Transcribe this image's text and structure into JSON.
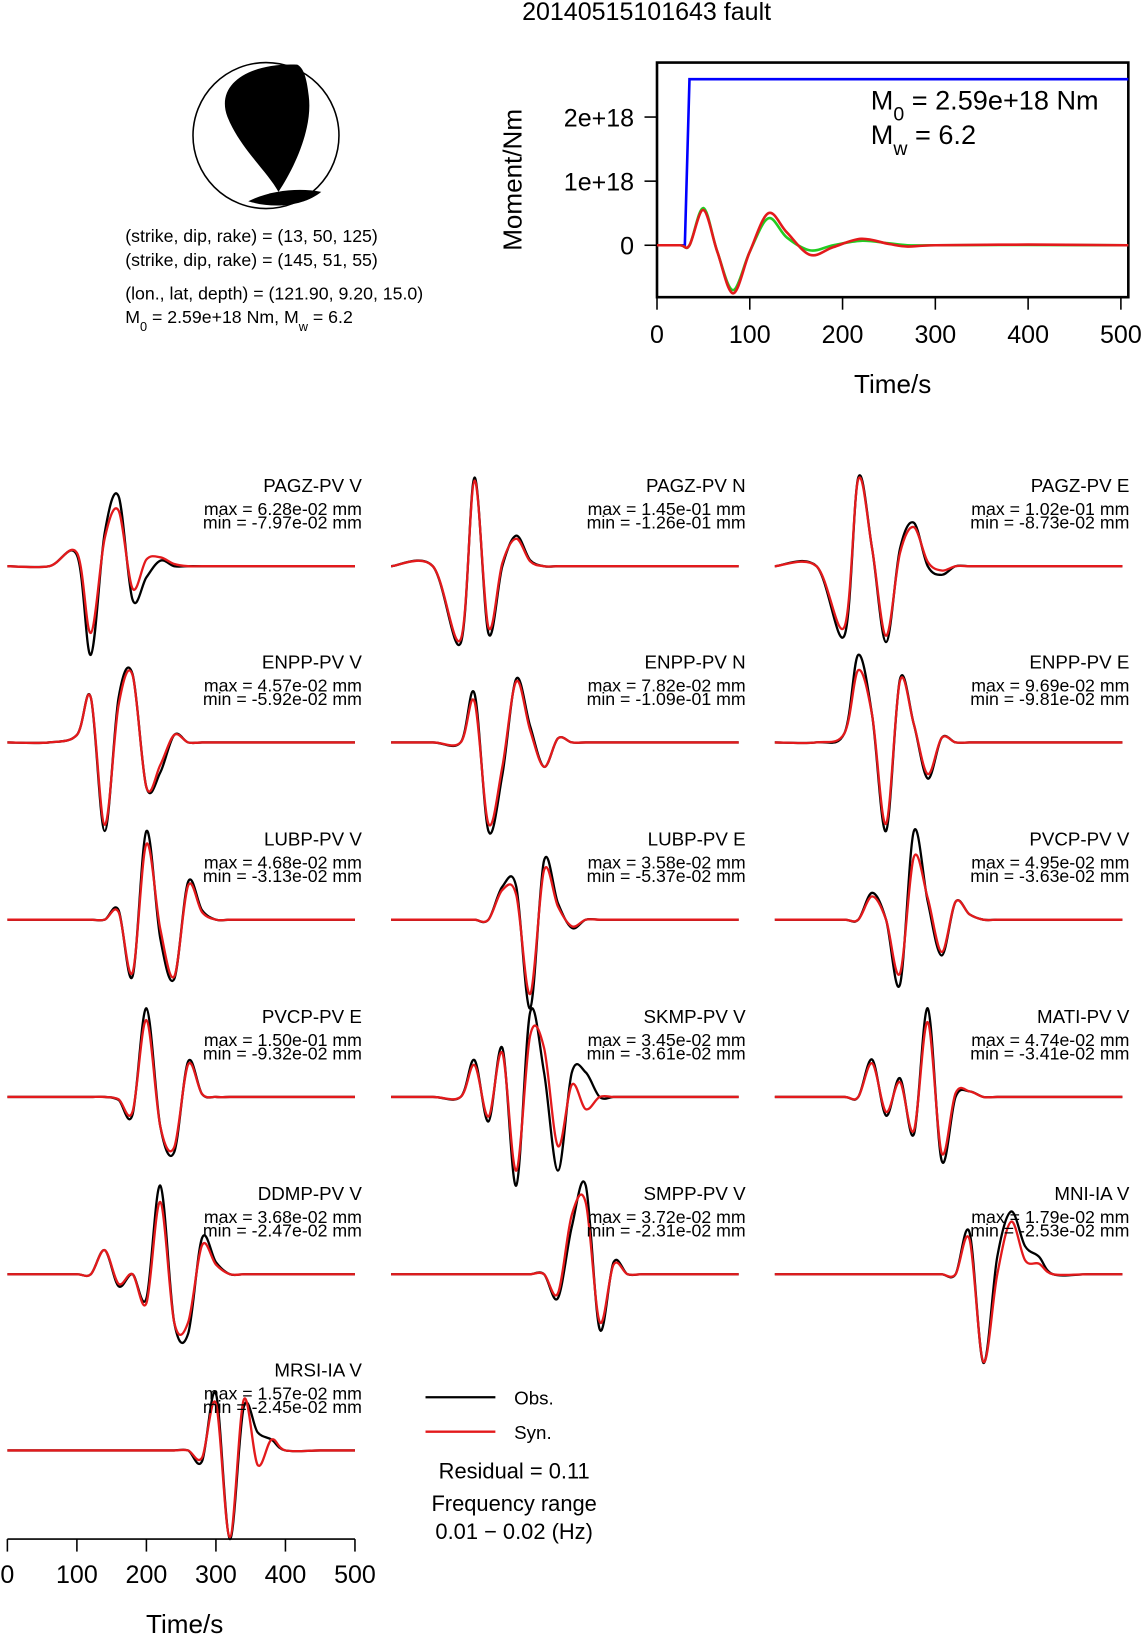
{
  "title": "20140515101643 fault",
  "mechanism": {
    "lines": [
      "(strike, dip, rake) = (13, 50, 125)",
      "(strike, dip, rake) = (145, 51, 55)",
      "(lon., lat, depth) = (121.90, 9.20, 15.0)"
    ],
    "moment_line": [
      "M",
      "0",
      " = 2.59e+18 Nm, M",
      "w",
      " = 6.2"
    ]
  },
  "chart_data": [
    {
      "type": "line",
      "xlabel": "Time/s",
      "ylabel": "Moment/Nm",
      "xlim": [
        0,
        508
      ],
      "xticks": [
        0,
        100,
        200,
        300,
        400,
        500
      ],
      "ylim": [
        -8.1e+17,
        2.85e+18
      ],
      "yticks": [
        0,
        {
          "value": 1e+18,
          "label": "1e+18"
        },
        {
          "value": 2e+18,
          "label": "2e+18"
        }
      ],
      "annotation": [
        [
          "M",
          "0",
          " = 2.59e+18 Nm"
        ],
        [
          "M",
          "w",
          " = 6.2"
        ]
      ],
      "series": [
        {
          "color": "#0000ff",
          "x": [
            0,
            30,
            35,
            508
          ],
          "values": [
            0,
            0,
            2.59e+18,
            2.59e+18
          ]
        },
        {
          "color": "#22cc22",
          "x": [
            0,
            25,
            35,
            50,
            65,
            82,
            100,
            120,
            140,
            165,
            190,
            220,
            250,
            270,
            300,
            400,
            508
          ],
          "values": [
            0,
            0,
            0,
            5.8e+17,
            -1e+17,
            -7e+17,
            -1e+17,
            4.2e+17,
            1.2e+17,
            -8e+16,
            0,
            7e+16,
            3e+16,
            0,
            0,
            5000000000000000.0,
            0
          ]
        },
        {
          "color": "#e31a1c",
          "x": [
            0,
            25,
            35,
            50,
            65,
            82,
            100,
            120,
            140,
            165,
            190,
            220,
            250,
            270,
            300,
            400,
            508
          ],
          "values": [
            0,
            0,
            0,
            5.5e+17,
            -1e+17,
            -7.5e+17,
            -1e+17,
            5e+17,
            2e+17,
            -1.5e+17,
            -3e+16,
            1e+17,
            2e+16,
            -2e+16,
            0,
            1e+16,
            0
          ]
        }
      ]
    },
    {
      "type": "waveform",
      "xlabel": "Time/s",
      "xlim": [
        0,
        510
      ],
      "xticks": [
        0,
        100,
        200,
        300,
        400,
        500
      ],
      "x": [
        0,
        60,
        100,
        120,
        140,
        160,
        180,
        200,
        220,
        240,
        260,
        280,
        300,
        320,
        340,
        360,
        380,
        400,
        450,
        500
      ],
      "legend": [
        {
          "name": "Obs.",
          "color": "#000000"
        },
        {
          "name": "Syn.",
          "color": "#e31a1c"
        }
      ],
      "notes": [
        "Residual = 0.11",
        "Frequency range",
        "0.01 − 0.02 (Hz)"
      ],
      "panels": [
        {
          "station": "PAGZ-PV V",
          "max": 0.0628,
          "max_label": "max = 6.28e-02 mm",
          "min": -0.0797,
          "min_label": "min = -7.97e-02 mm",
          "obs": [
            0,
            0,
            0.01,
            -0.0797,
            0.03,
            0.0628,
            -0.03,
            -0.01,
            0.005,
            0,
            0,
            0,
            0,
            0,
            0,
            0,
            0,
            0,
            0,
            0
          ],
          "syn": [
            0,
            0,
            0.012,
            -0.06,
            0.025,
            0.05,
            -0.02,
            0.006,
            0.008,
            0.002,
            0,
            0,
            0,
            0,
            0,
            0,
            0,
            0,
            0,
            0
          ]
        },
        {
          "station": "PAGZ-PV N",
          "max": 0.145,
          "max_label": "max = 1.45e-01 mm",
          "min": -0.126,
          "min_label": "min = -1.26e-01 mm",
          "obs": [
            0,
            0,
            -0.126,
            0.145,
            -0.11,
            0,
            0.05,
            0.01,
            0,
            0,
            0,
            0,
            0,
            0,
            0,
            0,
            0,
            0,
            0,
            0
          ],
          "syn": [
            0,
            0,
            -0.12,
            0.14,
            -0.1,
            0.005,
            0.045,
            0.008,
            0,
            0,
            0,
            0,
            0,
            0,
            0,
            0,
            0,
            0,
            0,
            0
          ]
        },
        {
          "station": "PAGZ-PV E",
          "max": 0.102,
          "max_label": "max = 1.02e-01 mm",
          "min": -0.0873,
          "min_label": "min = -8.73e-02 mm",
          "obs": [
            0,
            0,
            -0.08,
            0.102,
            0.02,
            -0.0873,
            0.02,
            0.05,
            0,
            -0.01,
            0,
            0,
            0,
            0,
            0,
            0,
            0,
            0,
            0,
            0
          ],
          "syn": [
            0,
            0,
            -0.07,
            0.1,
            0.02,
            -0.08,
            0.015,
            0.045,
            0.005,
            -0.005,
            0,
            0,
            0,
            0,
            0,
            0,
            0,
            0,
            0,
            0
          ]
        },
        {
          "station": "ENPP-PV V",
          "max": 0.0457,
          "max_label": "max = 4.57e-02 mm",
          "min": -0.0592,
          "min_label": "min = -5.92e-02 mm",
          "obs": [
            0,
            0,
            0.005,
            0.03,
            -0.0592,
            0.03,
            0.0457,
            -0.03,
            -0.02,
            0.005,
            0,
            0,
            0,
            0,
            0,
            0,
            0,
            0,
            0,
            0
          ],
          "syn": [
            0,
            0,
            0.005,
            0.03,
            -0.055,
            0.025,
            0.045,
            -0.03,
            -0.015,
            0.005,
            0,
            0,
            0,
            0,
            0,
            0,
            0,
            0,
            0,
            0
          ]
        },
        {
          "station": "ENPP-PV N",
          "max": 0.0782,
          "max_label": "max = 7.82e-02 mm",
          "min": -0.109,
          "min_label": "min = -1.09e-01 mm",
          "obs": [
            0,
            0,
            0,
            0.06,
            -0.109,
            -0.04,
            0.0782,
            0.02,
            -0.03,
            0.005,
            0,
            0,
            0,
            0,
            0,
            0,
            0,
            0,
            0,
            0
          ],
          "syn": [
            0,
            0,
            0,
            0.05,
            -0.1,
            -0.03,
            0.075,
            0.015,
            -0.03,
            0.005,
            0,
            0,
            0,
            0,
            0,
            0,
            0,
            0,
            0,
            0
          ]
        },
        {
          "station": "ENPP-PV E",
          "max": 0.0969,
          "max_label": "max = 9.69e-02 mm",
          "min": -0.0981,
          "min_label": "min = -9.81e-02 mm",
          "obs": [
            0,
            0,
            0.01,
            0.0969,
            0.03,
            -0.0981,
            0.07,
            0.02,
            -0.04,
            0.005,
            0,
            0,
            0,
            0,
            0,
            0,
            0,
            0,
            0,
            0
          ],
          "syn": [
            0,
            0,
            0.01,
            0.08,
            0.03,
            -0.09,
            0.068,
            0.02,
            -0.035,
            0.005,
            0,
            0,
            0,
            0,
            0,
            0,
            0,
            0,
            0,
            0
          ]
        },
        {
          "station": "LUBP-PV V",
          "max": 0.0468,
          "max_label": "max = 4.68e-02 mm",
          "min": -0.0313,
          "min_label": "min = -3.13e-02 mm",
          "obs": [
            0,
            0,
            0,
            0,
            0,
            0.005,
            -0.03,
            0.0468,
            -0.01,
            -0.0313,
            0.02,
            0.005,
            0,
            0,
            0,
            0,
            0,
            0,
            0,
            0
          ],
          "syn": [
            0,
            0,
            0,
            0,
            0,
            0.004,
            -0.028,
            0.04,
            -0.005,
            -0.03,
            0.018,
            0.004,
            0,
            0,
            0,
            0,
            0,
            0,
            0,
            0
          ]
        },
        {
          "station": "LUBP-PV E",
          "max": 0.0358,
          "max_label": "max = 3.58e-02 mm",
          "min": -0.0537,
          "min_label": "min = -5.37e-02 mm",
          "obs": [
            0,
            0,
            0,
            0,
            0,
            0.02,
            0.02,
            -0.0537,
            0.0358,
            0.01,
            -0.005,
            0,
            0,
            0,
            0,
            0,
            0,
            0,
            0,
            0
          ],
          "syn": [
            0,
            0,
            0,
            0,
            0,
            0.018,
            0.015,
            -0.045,
            0.03,
            0.008,
            -0.004,
            0,
            0,
            0,
            0,
            0,
            0,
            0,
            0,
            0
          ]
        },
        {
          "station": "PVCP-PV V",
          "max": 0.0495,
          "max_label": "max = 4.95e-02 mm",
          "min": -0.0363,
          "min_label": "min = -3.63e-02 mm",
          "obs": [
            0,
            0,
            0,
            0,
            0.015,
            0,
            -0.0363,
            0.0495,
            0.01,
            -0.02,
            0.01,
            0.003,
            0,
            0,
            0,
            0,
            0,
            0,
            0,
            0
          ],
          "syn": [
            0,
            0,
            0,
            0,
            0.013,
            0,
            -0.03,
            0.035,
            0.012,
            -0.018,
            0.01,
            0.003,
            0,
            0,
            0,
            0,
            0,
            0,
            0,
            0
          ]
        },
        {
          "station": "PVCP-PV E",
          "max": 0.15,
          "max_label": "max = 1.50e-01 mm",
          "min": -0.0932,
          "min_label": "min = -9.32e-02 mm",
          "obs": [
            0,
            0,
            0,
            0,
            0,
            -0.005,
            -0.03,
            0.15,
            -0.05,
            -0.0932,
            0.06,
            0.005,
            0,
            0,
            0,
            0,
            0,
            0,
            0,
            0
          ],
          "syn": [
            0,
            0,
            0,
            0,
            0,
            -0.004,
            -0.025,
            0.13,
            -0.05,
            -0.085,
            0.055,
            0.005,
            0,
            0,
            0,
            0,
            0,
            0,
            0,
            0
          ]
        },
        {
          "station": "SKMP-PV V",
          "max": 0.0345,
          "max_label": "max = 3.45e-02 mm",
          "min": -0.0361,
          "min_label": "min = -3.61e-02 mm",
          "obs": [
            0,
            0,
            0,
            0.015,
            -0.01,
            0.02,
            -0.0361,
            0.0345,
            0.01,
            -0.03,
            0.01,
            0.01,
            0,
            0,
            0,
            0,
            0,
            0,
            0,
            0
          ],
          "syn": [
            0,
            0,
            0,
            0.013,
            -0.008,
            0.018,
            -0.03,
            0.025,
            0.02,
            -0.02,
            0.005,
            -0.005,
            0,
            0,
            0,
            0,
            0,
            0,
            0,
            0
          ]
        },
        {
          "station": "MATI-PV V",
          "max": 0.0474,
          "max_label": "max = 4.74e-02 mm",
          "min": -0.0341,
          "min_label": "min = -3.41e-02 mm",
          "obs": [
            0,
            0,
            0,
            0,
            0.02,
            -0.01,
            0.01,
            -0.02,
            0.0474,
            -0.0341,
            0,
            0.003,
            0,
            0,
            0,
            0,
            0,
            0,
            0,
            0
          ],
          "syn": [
            0,
            0,
            0,
            0,
            0.018,
            -0.008,
            0.008,
            -0.018,
            0.04,
            -0.03,
            0.002,
            0.003,
            0,
            0,
            0,
            0,
            0,
            0,
            0,
            0
          ]
        },
        {
          "station": "DDMP-PV V",
          "max": 0.0368,
          "max_label": "max = 3.68e-02 mm",
          "min": -0.0247,
          "min_label": "min = -2.47e-02 mm",
          "obs": [
            0,
            0,
            0,
            0,
            0.01,
            -0.005,
            0,
            -0.01,
            0.0368,
            -0.02,
            -0.0247,
            0.015,
            0.005,
            0,
            0,
            0,
            0,
            0,
            0,
            0
          ],
          "syn": [
            0,
            0,
            0,
            0,
            0.01,
            -0.004,
            0,
            -0.012,
            0.03,
            -0.02,
            -0.02,
            0.012,
            0.004,
            0,
            0,
            0,
            0,
            0,
            0,
            0
          ]
        },
        {
          "station": "SMPP-PV V",
          "max": 0.0372,
          "max_label": "max = 3.72e-02 mm",
          "min": -0.0231,
          "min_label": "min = -2.31e-02 mm",
          "obs": [
            0,
            0,
            0,
            0,
            0,
            0,
            0,
            0,
            0,
            -0.01,
            0.02,
            0.0372,
            -0.0231,
            0.005,
            0,
            0,
            0,
            0,
            0,
            0
          ],
          "syn": [
            0,
            0,
            0,
            0,
            0,
            0,
            0,
            0,
            0,
            -0.008,
            0.025,
            0.03,
            -0.02,
            0.004,
            0,
            0,
            0,
            0,
            0,
            0
          ]
        },
        {
          "station": "MNI-IA V",
          "max": 0.0179,
          "max_label": "max = 1.79e-02 mm",
          "min": -0.0253,
          "min_label": "min = -2.53e-02 mm",
          "obs": [
            0,
            0,
            0,
            0,
            0,
            0,
            0,
            0,
            0,
            0,
            0,
            0.012,
            -0.0253,
            0.005,
            0.0179,
            0.008,
            0.005,
            0,
            0,
            0
          ],
          "syn": [
            0,
            0,
            0,
            0,
            0,
            0,
            0,
            0,
            0,
            0,
            0,
            0.01,
            -0.025,
            0,
            0.015,
            0.004,
            0.003,
            0,
            0,
            0
          ]
        },
        {
          "station": "MRSI-IA V",
          "max": 0.0157,
          "max_label": "max = 1.57e-02 mm",
          "min": -0.0245,
          "min_label": "min = -2.45e-02 mm",
          "obs": [
            0,
            0,
            0,
            0,
            0,
            0,
            0,
            0,
            0,
            0,
            0,
            -0.003,
            0.0157,
            -0.0245,
            0.012,
            0.005,
            0.003,
            0,
            0,
            0
          ],
          "syn": [
            0,
            0,
            0,
            0,
            0,
            0,
            0,
            0,
            0,
            0,
            0,
            -0.002,
            0.013,
            -0.024,
            0.014,
            -0.004,
            0.003,
            0,
            0,
            0
          ]
        }
      ]
    }
  ]
}
